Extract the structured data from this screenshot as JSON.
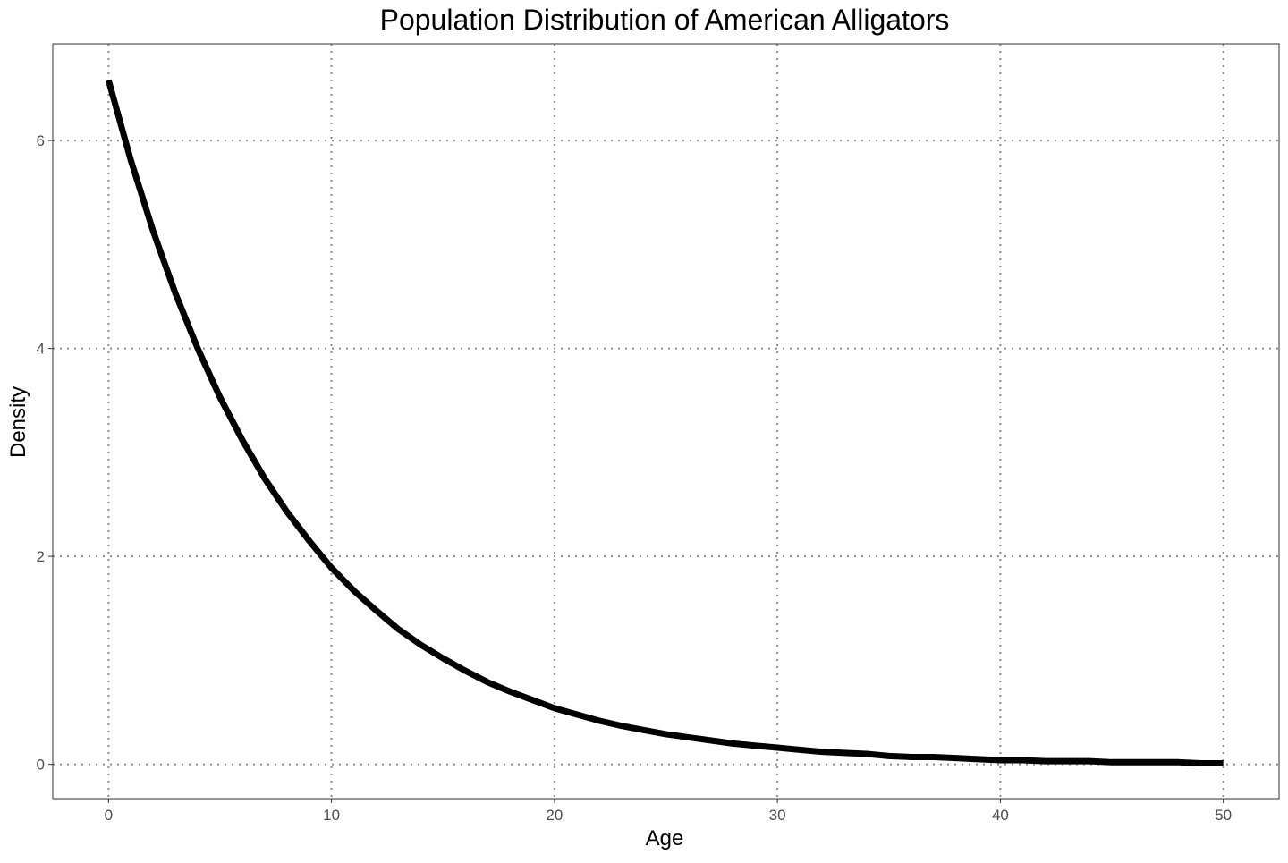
{
  "chart_data": {
    "type": "line",
    "title": "Population Distribution of American Alligators",
    "xlabel": "Age",
    "ylabel": "Density",
    "xlim": [
      -2.5,
      52.5
    ],
    "ylim": [
      -0.33,
      6.93
    ],
    "x_ticks": [
      0,
      10,
      20,
      30,
      40,
      50
    ],
    "x_tick_labels": [
      "0",
      "10",
      "20",
      "30",
      "40",
      "50"
    ],
    "y_ticks": [
      0,
      2,
      4,
      6
    ],
    "y_tick_labels": [
      "0",
      "2",
      "4",
      "6"
    ],
    "grid": true,
    "legend": "none",
    "series": [
      {
        "color": "#000000",
        "x": [
          0,
          1,
          2,
          3,
          4,
          5,
          6,
          7,
          8,
          9,
          10,
          11,
          12,
          13,
          14,
          15,
          16,
          17,
          18,
          19,
          20,
          21,
          22,
          23,
          24,
          25,
          26,
          27,
          28,
          29,
          30,
          31,
          32,
          33,
          34,
          35,
          36,
          37,
          38,
          39,
          40,
          41,
          42,
          43,
          44,
          45,
          46,
          47,
          48,
          49,
          50
        ],
        "y": [
          6.58,
          5.81,
          5.13,
          4.53,
          4.0,
          3.53,
          3.12,
          2.75,
          2.43,
          2.15,
          1.89,
          1.67,
          1.48,
          1.3,
          1.15,
          1.02,
          0.9,
          0.79,
          0.7,
          0.62,
          0.54,
          0.48,
          0.42,
          0.37,
          0.33,
          0.29,
          0.26,
          0.23,
          0.2,
          0.18,
          0.16,
          0.14,
          0.12,
          0.11,
          0.1,
          0.08,
          0.07,
          0.07,
          0.06,
          0.05,
          0.04,
          0.04,
          0.03,
          0.03,
          0.03,
          0.02,
          0.02,
          0.02,
          0.02,
          0.01,
          0.01
        ]
      }
    ]
  }
}
